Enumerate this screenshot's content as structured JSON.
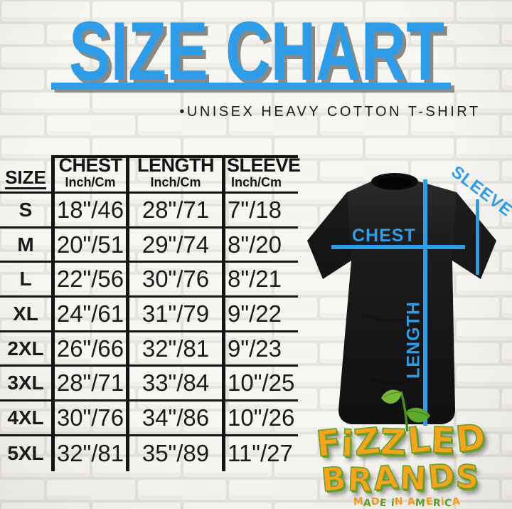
{
  "header": {
    "title": "SIZE CHART",
    "subtitle": "•UNISEX HEAVY COTTON T-SHIRT"
  },
  "table": {
    "headers": [
      {
        "label": "SIZE",
        "sub": ""
      },
      {
        "label": "CHEST",
        "sub": "Inch/Cm"
      },
      {
        "label": "LENGTH",
        "sub": "Inch/Cm"
      },
      {
        "label": "SLEEVE",
        "sub": "Inch/Cm"
      }
    ]
  },
  "chart_data": {
    "type": "table",
    "title": "SIZE CHART",
    "subtitle": "•UNISEX HEAVY COTTON T-SHIRT",
    "columns": [
      "SIZE",
      "CHEST Inch/Cm",
      "LENGTH Inch/Cm",
      "SLEEVE Inch/Cm"
    ],
    "rows": [
      [
        "S",
        "18\"/46",
        "28\"/71",
        "7\"/18"
      ],
      [
        "M",
        "20\"/51",
        "29\"/74",
        "8\"/20"
      ],
      [
        "L",
        "22\"/56",
        "30\"/76",
        "8\"/21"
      ],
      [
        "XL",
        "24\"/61",
        "31\"/79",
        "9\"/22"
      ],
      [
        "2XL",
        "26\"/66",
        "32\"/81",
        "9\"/23"
      ],
      [
        "3XL",
        "28\"/71",
        "33\"/84",
        "10\"/25"
      ],
      [
        "4XL",
        "30\"/76",
        "34\"/86",
        "10\"/26"
      ],
      [
        "5XL",
        "32\"/81",
        "35\"/89",
        "11\"/27"
      ]
    ]
  },
  "shirt": {
    "chest_label": "CHEST",
    "length_label": "LENGTH",
    "sleeve_label": "SLEEVE"
  },
  "logo": {
    "brand_line1": "FiZZLED",
    "brand_line2": "BRANDS",
    "tagline": "MADE iN AMERiCA"
  },
  "colors": {
    "accent_blue": "#2f9ce8",
    "table_ink": "#141414",
    "logo_orange": "#f6a41e",
    "logo_green": "#67a02b",
    "shirt_black": "#161616"
  }
}
